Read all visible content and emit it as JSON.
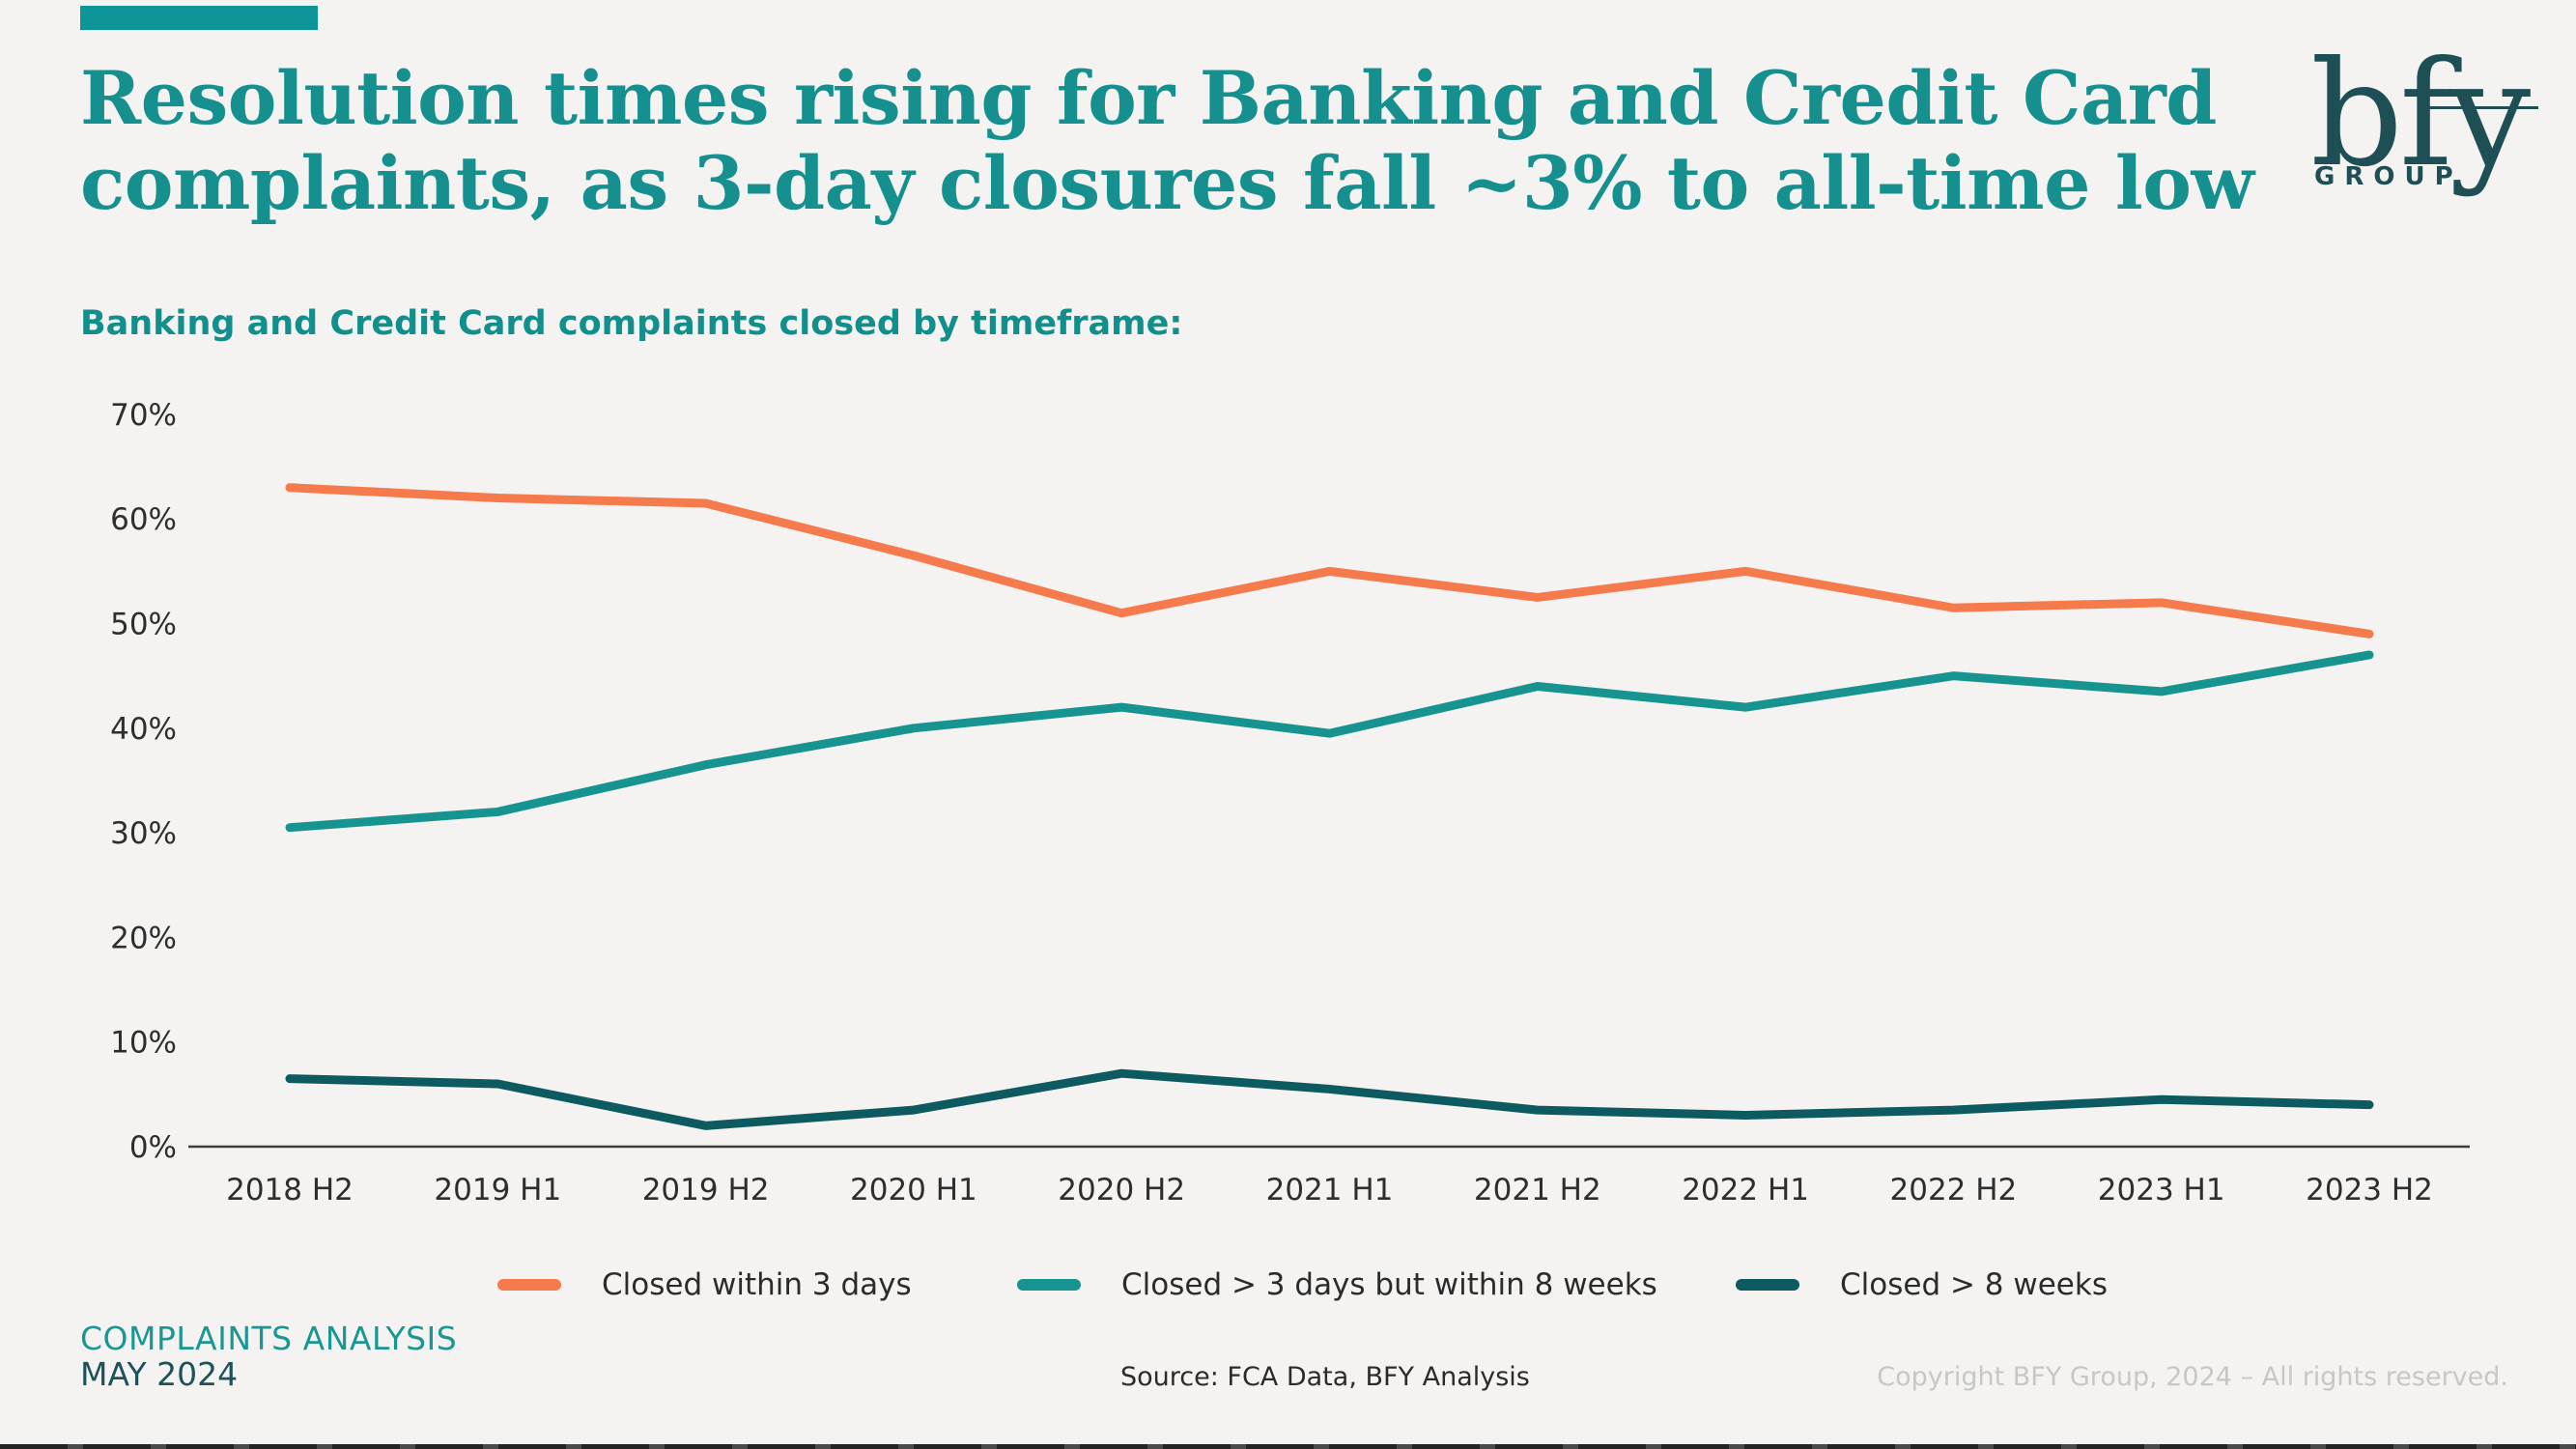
{
  "page": {
    "background": "#F4F3F1"
  },
  "header": {
    "accent_bar_color": "#0D9598",
    "title": "Resolution times rising for Banking and Credit Card complaints, as 3-day closures fall ~3% to all-time low",
    "title_color": "#16908E",
    "logo": {
      "text": "bfy",
      "subtext": "GROUP",
      "color": "#1D4F55"
    }
  },
  "chart": {
    "subtitle": "Banking and Credit Card complaints closed by timeframe:",
    "subtitle_color": "#118F8C",
    "axis_color": "#3C3C3C",
    "tick_label_color": "#2E2E2E"
  },
  "chart_data": {
    "type": "line",
    "title": "Banking and Credit Card complaints closed by timeframe:",
    "categories": [
      "2018 H2",
      "2019 H1",
      "2019 H2",
      "2020 H1",
      "2020 H2",
      "2021 H1",
      "2021 H2",
      "2022 H1",
      "2022 H2",
      "2023 H1",
      "2023 H2"
    ],
    "series": [
      {
        "name": "Closed within 3 days",
        "color": "#F57A4C",
        "values": [
          63,
          62,
          61.5,
          56.5,
          51,
          55,
          52.5,
          55,
          51.5,
          52,
          49
        ]
      },
      {
        "name": "Closed > 3 days but within 8 weeks",
        "color": "#17948F",
        "values": [
          30.5,
          32,
          36.5,
          40,
          42,
          39.5,
          44,
          42,
          45,
          43.5,
          47
        ]
      },
      {
        "name": "Closed > 8 weeks",
        "color": "#0E5A61",
        "values": [
          6.5,
          6,
          2,
          3.5,
          7,
          5.5,
          3.5,
          3,
          3.5,
          4.5,
          4
        ]
      }
    ],
    "yticks": [
      "0%",
      "10%",
      "20%",
      "30%",
      "40%",
      "50%",
      "60%",
      "70%"
    ],
    "ylabel": "",
    "xlabel": "",
    "ylim": [
      0,
      70
    ],
    "grid": false,
    "legend_position": "bottom"
  },
  "footer": {
    "tagline_line1": "COMPLAINTS ANALYSIS",
    "tagline_line1_color": "#1A9793",
    "tagline_line2": "MAY 2024",
    "tagline_line2_color": "#1D5358",
    "source": "Source: FCA Data, BFY Analysis",
    "copyright": "Copyright BFY Group, 2024 – All rights reserved."
  }
}
